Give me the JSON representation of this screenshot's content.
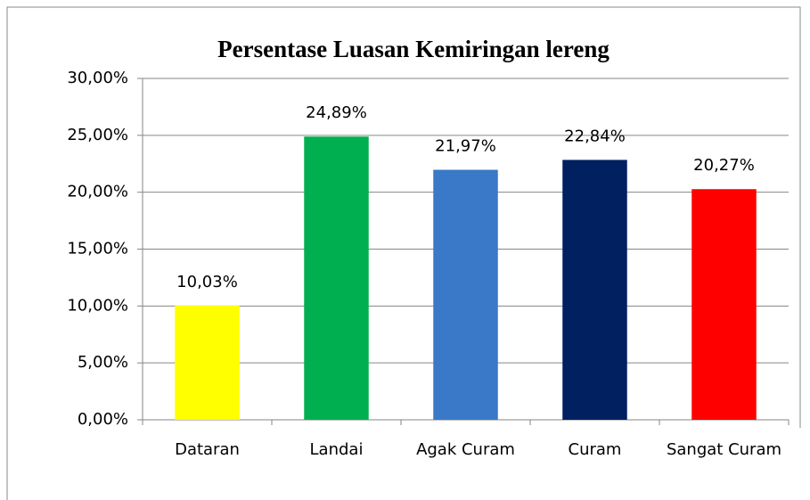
{
  "chart_data": {
    "type": "bar",
    "title": "Persentase Luasan Kemiringan lereng",
    "categories": [
      "Dataran",
      "Landai",
      "Agak Curam",
      "Curam",
      "Sangat Curam"
    ],
    "values": [
      10.03,
      24.89,
      21.97,
      22.84,
      20.27
    ],
    "value_labels": [
      "10,03%",
      "24,89%",
      "21,97%",
      "22,84%",
      "20,27%"
    ],
    "colors": [
      "#ffff00",
      "#00b050",
      "#3a78c8",
      "#002060",
      "#ff0000"
    ],
    "ylim": [
      0,
      30
    ],
    "yticks": [
      {
        "value": 0,
        "label": "0,00%"
      },
      {
        "value": 5,
        "label": "5,00%"
      },
      {
        "value": 10,
        "label": "10,00%"
      },
      {
        "value": 15,
        "label": "15,00%"
      },
      {
        "value": 20,
        "label": "20,00%"
      },
      {
        "value": 25,
        "label": "25,00%"
      },
      {
        "value": 30,
        "label": "30,00%"
      }
    ],
    "grid": true
  }
}
